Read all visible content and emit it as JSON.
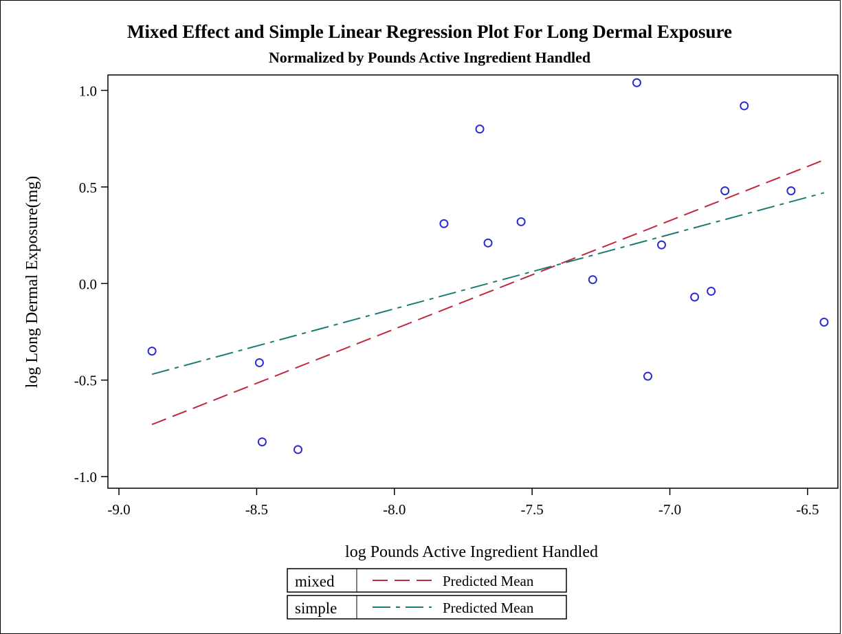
{
  "chart_data": {
    "type": "scatter",
    "title": "Mixed Effect and Simple Linear Regression Plot For Long Dermal Exposure",
    "subtitle": "Normalized by Pounds Active Ingredient Handled",
    "xlabel": "log Pounds Active Ingredient Handled",
    "ylabel": "log Long Dermal Exposure(mg)",
    "xlim": [
      -9.04,
      -6.39
    ],
    "ylim": [
      -1.06,
      1.08
    ],
    "x_ticks": [
      -9.0,
      -8.5,
      -8.0,
      -7.5,
      -7.0,
      -6.5
    ],
    "x_tick_labels": [
      "-9.0",
      "-8.5",
      "-8.0",
      "-7.5",
      "-7.0",
      "-6.5"
    ],
    "y_ticks": [
      -1.0,
      -0.5,
      0.0,
      0.5,
      1.0
    ],
    "y_tick_labels": [
      "-1.0",
      "-0.5",
      "0.0",
      "0.5",
      "1.0"
    ],
    "grid": false,
    "points": {
      "marker": "circle",
      "color": "#2b2bd6",
      "x": [
        -8.88,
        -8.49,
        -8.48,
        -8.35,
        -7.82,
        -7.69,
        -7.66,
        -7.54,
        -7.28,
        -7.12,
        -7.08,
        -7.03,
        -6.91,
        -6.85,
        -6.8,
        -6.73,
        -6.56,
        -6.44
      ],
      "y": [
        -0.35,
        -0.41,
        -0.82,
        -0.86,
        0.31,
        0.8,
        0.21,
        0.32,
        0.02,
        1.04,
        -0.48,
        0.2,
        -0.07,
        -0.04,
        0.48,
        0.92,
        0.48,
        -0.2
      ]
    },
    "series": [
      {
        "group": "mixed",
        "name": "Predicted Mean",
        "color": "#c0283c",
        "dash": "long-dash",
        "x": [
          -8.88,
          -6.44
        ],
        "y": [
          -0.73,
          0.64
        ]
      },
      {
        "group": "simple",
        "name": "Predicted Mean",
        "color": "#1a7a74",
        "dash": "dash-dot",
        "x": [
          -8.88,
          -6.44
        ],
        "y": [
          -0.47,
          0.47
        ]
      }
    ],
    "legend_position": "bottom-center"
  }
}
